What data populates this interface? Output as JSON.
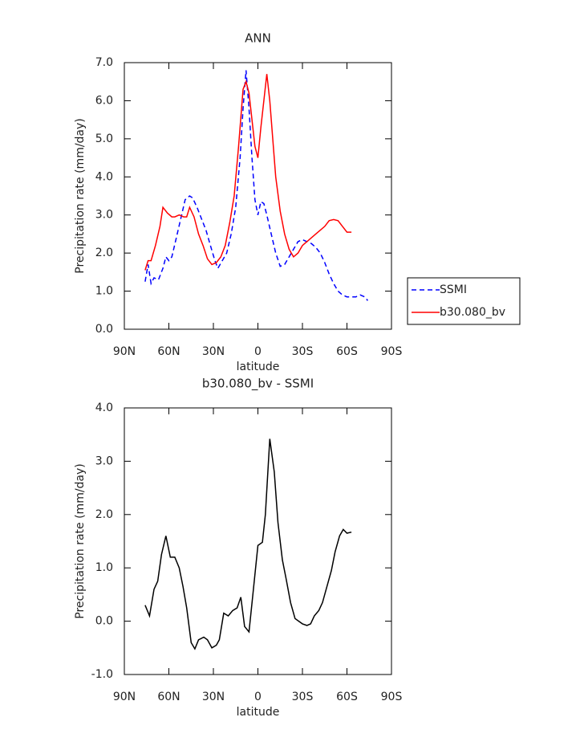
{
  "chart_data": [
    {
      "type": "line",
      "title": "ANN",
      "x_label": "latitude",
      "y_label": "Precipitation rate (mm/day)",
      "xlim": [
        90,
        -90
      ],
      "xticks": [
        {
          "value": 90,
          "label": "90N"
        },
        {
          "value": 60,
          "label": "60N"
        },
        {
          "value": 30,
          "label": "30N"
        },
        0,
        {
          "value": -30,
          "label": "30S"
        },
        {
          "value": -60,
          "label": "60S"
        },
        {
          "value": -90,
          "label": "90S"
        }
      ],
      "ylim": [
        0,
        7
      ],
      "yticks": [
        {
          "value": 0,
          "label": "0.0"
        },
        {
          "value": 1,
          "label": "1.0"
        },
        {
          "value": 2,
          "label": "2.0"
        },
        {
          "value": 3,
          "label": "3.0"
        },
        {
          "value": 4,
          "label": "4.0"
        },
        {
          "value": 5,
          "label": "5.0"
        },
        {
          "value": 6,
          "label": "6.0"
        },
        {
          "value": 7,
          "label": "7.0"
        }
      ],
      "grid": false,
      "legend": "right",
      "series": [
        {
          "name": "SSMI",
          "color": "#0000ff",
          "line_style": "dashed",
          "x": [
            76,
            74,
            72,
            70,
            67,
            64,
            62,
            60,
            58,
            55,
            52,
            49,
            46,
            44,
            41,
            38,
            35,
            32,
            29,
            27,
            24,
            21,
            18,
            15,
            12,
            10,
            8,
            6,
            4,
            2,
            0,
            -2,
            -4,
            -6,
            -9,
            -12,
            -15,
            -18,
            -21,
            -24,
            -27,
            -30,
            -33,
            -36,
            -39,
            -42,
            -45,
            -48,
            -51,
            -54,
            -57,
            -60,
            -62,
            -66,
            -69,
            -72,
            -74
          ],
          "values": [
            1.25,
            1.7,
            1.2,
            1.35,
            1.3,
            1.6,
            1.9,
            1.8,
            1.9,
            2.4,
            2.9,
            3.4,
            3.5,
            3.45,
            3.2,
            2.9,
            2.6,
            2.2,
            1.8,
            1.6,
            1.8,
            2.0,
            2.5,
            3.2,
            4.5,
            5.8,
            6.8,
            5.8,
            4.5,
            3.4,
            3.0,
            3.35,
            3.3,
            3.0,
            2.5,
            2.0,
            1.65,
            1.7,
            1.9,
            2.1,
            2.3,
            2.35,
            2.3,
            2.25,
            2.15,
            2.0,
            1.75,
            1.45,
            1.2,
            1.0,
            0.9,
            0.85,
            0.85,
            0.85,
            0.9,
            0.85,
            0.75
          ]
        },
        {
          "name": "b30.080_bv",
          "color": "#ff0000",
          "line_style": "solid",
          "x": [
            76,
            74,
            72,
            69,
            66,
            64,
            61,
            58,
            56,
            53,
            50,
            48,
            46,
            43,
            40,
            37,
            34,
            31,
            28,
            25,
            22,
            19,
            16,
            13,
            10,
            8,
            6,
            4,
            2,
            0,
            -2,
            -4,
            -6,
            -8,
            -10,
            -12,
            -15,
            -18,
            -21,
            -24,
            -27,
            -30,
            -33,
            -36,
            -39,
            -42,
            -45,
            -48,
            -51,
            -54,
            -57,
            -60,
            -63
          ],
          "values": [
            1.55,
            1.8,
            1.8,
            2.2,
            2.7,
            3.2,
            3.05,
            2.95,
            2.95,
            3.0,
            2.95,
            2.95,
            3.2,
            2.95,
            2.5,
            2.2,
            1.85,
            1.7,
            1.75,
            1.9,
            2.2,
            2.8,
            3.5,
            4.8,
            6.3,
            6.5,
            6.2,
            5.5,
            4.8,
            4.5,
            5.3,
            6.0,
            6.7,
            6.0,
            5.0,
            4.0,
            3.1,
            2.5,
            2.1,
            1.9,
            2.0,
            2.2,
            2.3,
            2.4,
            2.5,
            2.6,
            2.7,
            2.85,
            2.88,
            2.85,
            2.7,
            2.55,
            2.55
          ]
        }
      ]
    },
    {
      "type": "line",
      "title": "b30.080_bv - SSMI",
      "x_label": "latitude",
      "y_label": "Precipitation rate (mm/day)",
      "xlim": [
        90,
        -90
      ],
      "xticks": [
        {
          "value": 90,
          "label": "90N"
        },
        {
          "value": 60,
          "label": "60N"
        },
        {
          "value": 30,
          "label": "30N"
        },
        0,
        {
          "value": -30,
          "label": "30S"
        },
        {
          "value": -60,
          "label": "60S"
        },
        {
          "value": -90,
          "label": "90S"
        }
      ],
      "ylim": [
        -1,
        4
      ],
      "yticks": [
        {
          "value": -1,
          "label": "-1.0"
        },
        {
          "value": 0,
          "label": "0.0"
        },
        {
          "value": 1,
          "label": "1.0"
        },
        {
          "value": 2,
          "label": "2.0"
        },
        {
          "value": 3,
          "label": "3.0"
        },
        {
          "value": 4,
          "label": "4.0"
        }
      ],
      "grid": false,
      "x": [
        76,
        73,
        70,
        67.5,
        65,
        62,
        59,
        56,
        53,
        50.5,
        48,
        45,
        42.5,
        40,
        36.5,
        34,
        31,
        28,
        26,
        23,
        20,
        17,
        14,
        11.5,
        9,
        6,
        3,
        0,
        -3,
        -5,
        -8,
        -11,
        -13.5,
        -16.5,
        -19,
        -22,
        -25,
        -27.5,
        -30,
        -33,
        -35.5,
        -38,
        -41,
        -43.5,
        -46,
        -49.5,
        -52,
        -55,
        -57.5,
        -60,
        -63
      ],
      "series": [
        {
          "color": "#000000",
          "line_style": "solid",
          "values": [
            0.3,
            0.1,
            0.6,
            0.75,
            1.25,
            1.6,
            1.2,
            1.2,
            1.0,
            0.65,
            0.25,
            -0.4,
            -0.52,
            -0.35,
            -0.3,
            -0.35,
            -0.5,
            -0.45,
            -0.35,
            0.15,
            0.1,
            0.2,
            0.25,
            0.45,
            -0.1,
            -0.2,
            0.6,
            1.42,
            1.48,
            2.0,
            3.42,
            2.8,
            1.85,
            1.15,
            0.8,
            0.35,
            0.05,
            0.0,
            -0.05,
            -0.08,
            -0.05,
            0.1,
            0.2,
            0.35,
            0.6,
            0.95,
            1.3,
            1.6,
            1.72,
            1.65,
            1.67
          ]
        }
      ]
    }
  ]
}
